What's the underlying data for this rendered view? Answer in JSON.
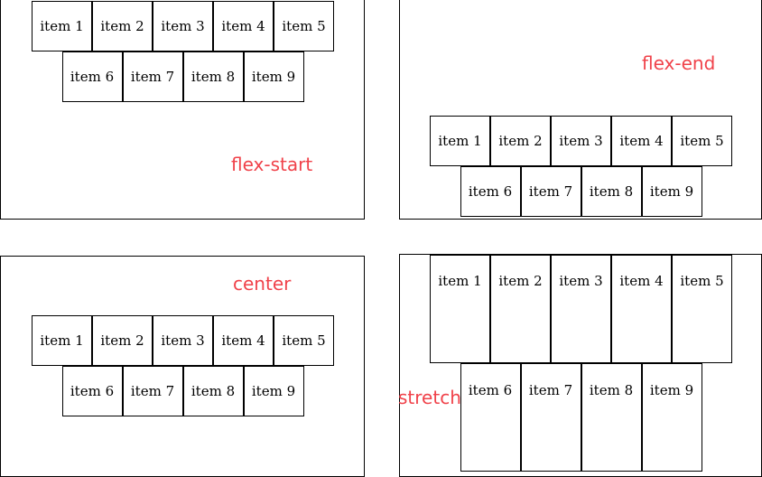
{
  "accent_color": "#f0424a",
  "panels": [
    {
      "label": "flex-start",
      "items": [
        "item 1",
        "item 2",
        "item 3",
        "item 4",
        "item 5",
        "item 6",
        "item 7",
        "item 8",
        "item 9"
      ]
    },
    {
      "label": "flex-end",
      "items": [
        "item 1",
        "item 2",
        "item 3",
        "item 4",
        "item 5",
        "item 6",
        "item 7",
        "item 8",
        "item 9"
      ]
    },
    {
      "label": "center",
      "items": [
        "item 1",
        "item 2",
        "item 3",
        "item 4",
        "item 5",
        "item 6",
        "item 7",
        "item 8",
        "item 9"
      ]
    },
    {
      "label": "stretch",
      "items": [
        "item 1",
        "item 2",
        "item 3",
        "item 4",
        "item 5",
        "item 6",
        "item 7",
        "item 8",
        "item 9"
      ]
    }
  ]
}
